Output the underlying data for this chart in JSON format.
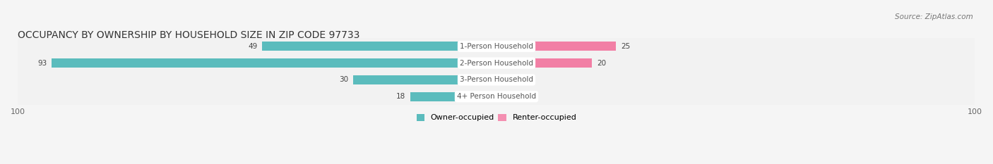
{
  "title": "OCCUPANCY BY OWNERSHIP BY HOUSEHOLD SIZE IN ZIP CODE 97733",
  "source": "Source: ZipAtlas.com",
  "categories": [
    "1-Person Household",
    "2-Person Household",
    "3-Person Household",
    "4+ Person Household"
  ],
  "owner_values": [
    49,
    93,
    30,
    18
  ],
  "renter_values": [
    25,
    20,
    0,
    0
  ],
  "owner_color": "#5bbcbd",
  "renter_color": "#f27fa5",
  "axis_max": 100,
  "bar_label_color_owner": "#555555",
  "bar_label_color_renter": "#555555",
  "bg_color": "#f5f5f5",
  "row_bg_color": "#ececec",
  "center_label_bg": "#ffffff",
  "title_fontsize": 10,
  "source_fontsize": 8,
  "legend_owner_color": "#5bbcbd",
  "legend_renter_color": "#f48fb1"
}
